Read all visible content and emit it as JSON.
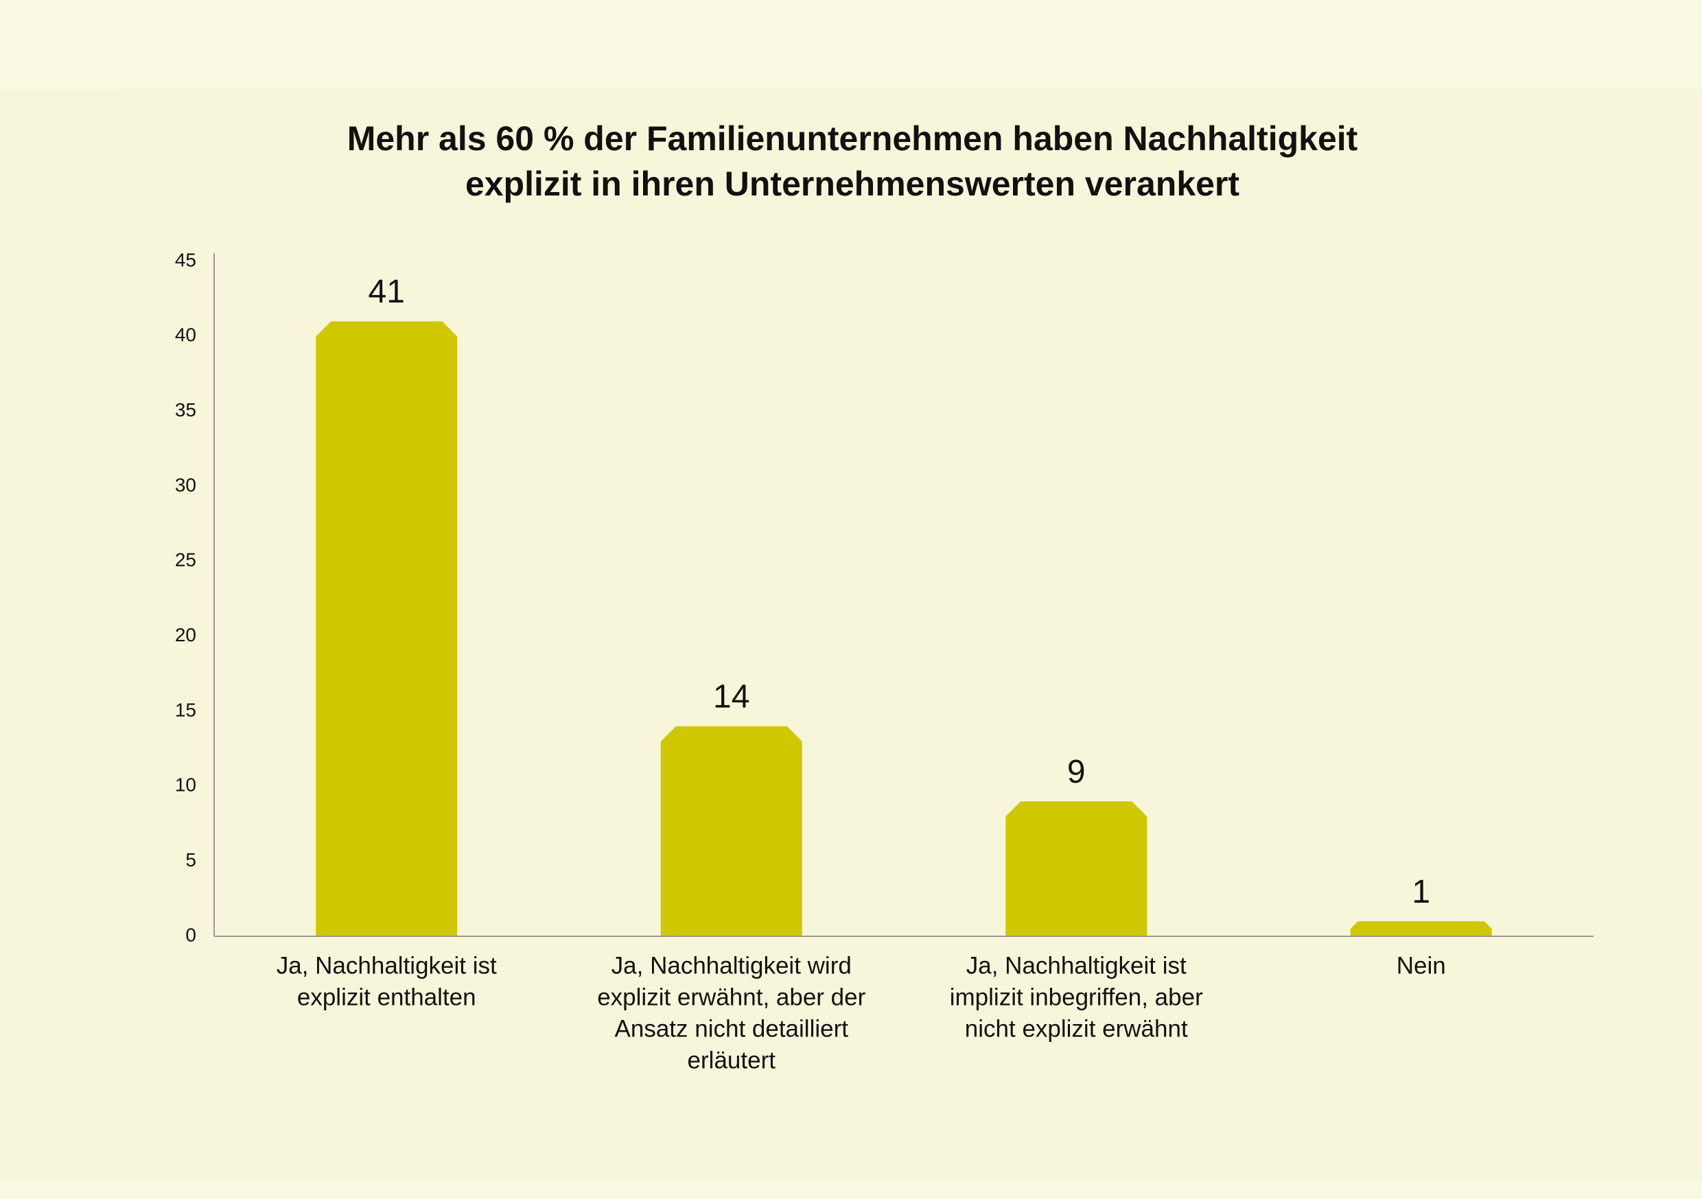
{
  "chart_data": {
    "type": "bar",
    "title": [
      "Mehr als 60 % der Familienunternehmen haben Nachhaltigkeit",
      "explizit in ihren Unternehmenswerten verankert"
    ],
    "categories": [
      [
        "Ja, Nachhaltigkeit ist",
        "explizit enthalten"
      ],
      [
        "Ja, Nachhaltigkeit wird",
        "explizit erwähnt, aber der",
        "Ansatz nicht detailliert",
        "erläutert"
      ],
      [
        "Ja, Nachhaltigkeit ist",
        "implizit inbegriffen, aber",
        "nicht explizit erwähnt"
      ],
      [
        "Nein"
      ]
    ],
    "values": [
      41,
      14,
      9,
      1
    ],
    "color": "#cfc800",
    "ylim": [
      0,
      45
    ],
    "yticks": [
      0,
      5,
      10,
      15,
      20,
      25,
      30,
      35,
      40,
      45
    ],
    "grid": false
  }
}
